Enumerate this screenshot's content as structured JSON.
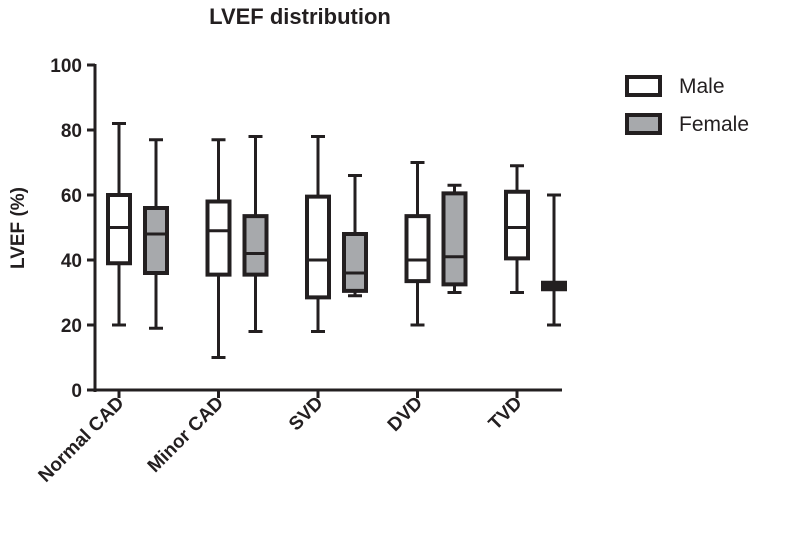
{
  "chart_data": {
    "type": "boxplot",
    "title": "LVEF distribution",
    "xlabel": "",
    "ylabel": "LVEF (%)",
    "ylim": [
      0,
      100
    ],
    "yticks": [
      0,
      20,
      40,
      60,
      80,
      100
    ],
    "categories": [
      "Normal CAD",
      "Minor CAD",
      "SVD",
      "DVD",
      "TVD"
    ],
    "legend_position": "top-right",
    "grid": false,
    "series": [
      {
        "name": "Male",
        "color": "#ffffff",
        "boxes": [
          {
            "min": 20,
            "q1": 39,
            "median": 50,
            "q3": 60,
            "max": 82
          },
          {
            "min": 10,
            "q1": 35.5,
            "median": 49,
            "q3": 58,
            "max": 77
          },
          {
            "min": 18,
            "q1": 28.5,
            "median": 40,
            "q3": 59.5,
            "max": 78
          },
          {
            "min": 20,
            "q1": 33.5,
            "median": 40,
            "q3": 53.5,
            "max": 70
          },
          {
            "min": 30,
            "q1": 40.5,
            "median": 50,
            "q3": 61,
            "max": 69
          }
        ]
      },
      {
        "name": "Female",
        "color": "#a7a9ac",
        "boxes": [
          {
            "min": 19,
            "q1": 36,
            "median": 48,
            "q3": 56,
            "max": 77
          },
          {
            "min": 18,
            "q1": 35.5,
            "median": 42,
            "q3": 53.5,
            "max": 78
          },
          {
            "min": 29,
            "q1": 30.5,
            "median": 36,
            "q3": 48,
            "max": 66
          },
          {
            "min": 30,
            "q1": 32.5,
            "median": 41,
            "q3": 60.5,
            "max": 63
          },
          {
            "min": 20,
            "q1": 31,
            "median": 32,
            "q3": 33,
            "max": 60
          }
        ]
      }
    ]
  }
}
